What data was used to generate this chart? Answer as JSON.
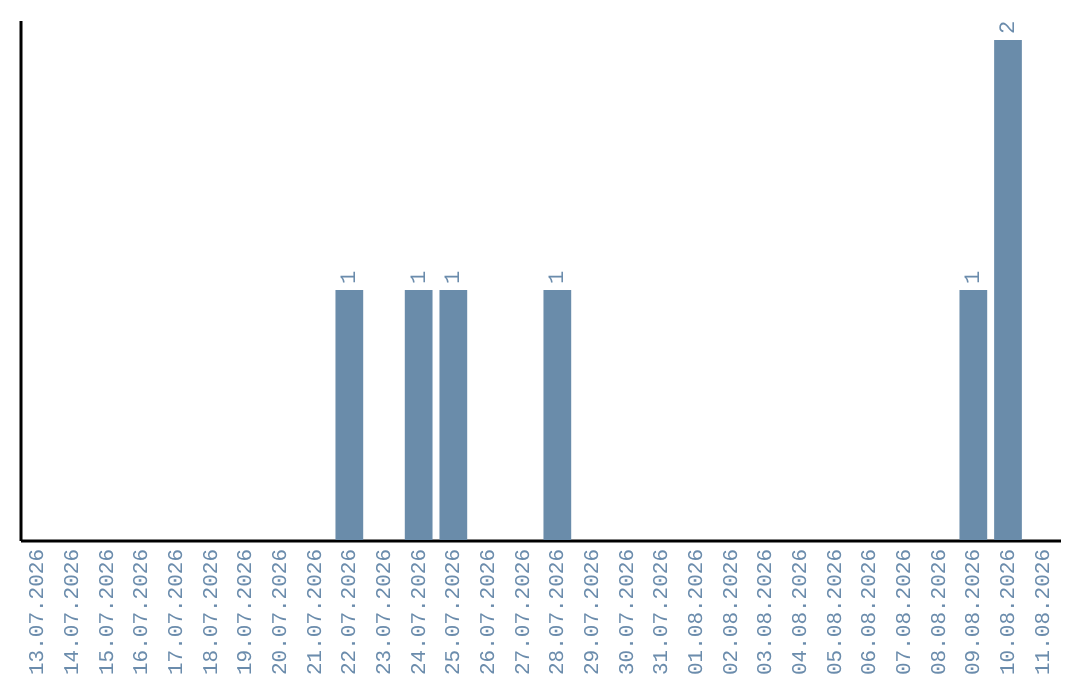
{
  "chart_data": {
    "type": "bar",
    "categories": [
      "13.07.2026",
      "14.07.2026",
      "15.07.2026",
      "16.07.2026",
      "17.07.2026",
      "18.07.2026",
      "19.07.2026",
      "20.07.2026",
      "21.07.2026",
      "22.07.2026",
      "23.07.2026",
      "24.07.2026",
      "25.07.2026",
      "26.07.2026",
      "27.07.2026",
      "28.07.2026",
      "29.07.2026",
      "30.07.2026",
      "31.07.2026",
      "01.08.2026",
      "02.08.2026",
      "03.08.2026",
      "04.08.2026",
      "05.08.2026",
      "06.08.2026",
      "07.08.2026",
      "08.08.2026",
      "09.08.2026",
      "10.08.2026",
      "11.08.2026"
    ],
    "values": [
      0,
      0,
      0,
      0,
      0,
      0,
      0,
      0,
      0,
      1,
      0,
      1,
      1,
      0,
      0,
      1,
      0,
      0,
      0,
      0,
      0,
      0,
      0,
      0,
      0,
      0,
      0,
      1,
      2,
      0
    ],
    "value_labels": [
      null,
      null,
      null,
      null,
      null,
      null,
      null,
      null,
      null,
      "1",
      null,
      "1",
      "1",
      null,
      null,
      "1",
      null,
      null,
      null,
      null,
      null,
      null,
      null,
      null,
      null,
      null,
      null,
      "1",
      "2",
      null
    ],
    "color": "#6a8caa",
    "ylim": [
      0,
      2.08
    ],
    "tick_labels": "x",
    "grid": false
  }
}
